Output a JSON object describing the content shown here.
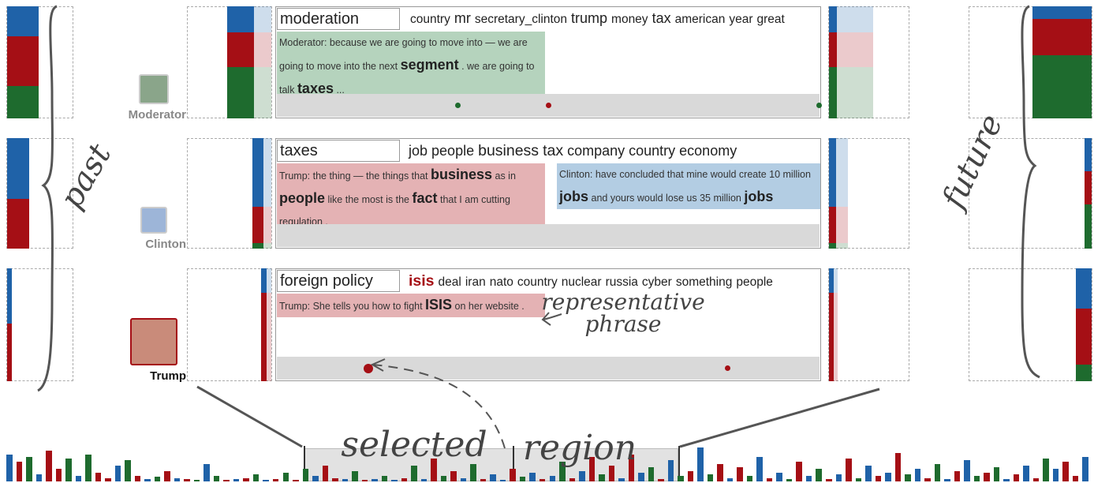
{
  "palette": [
    "#1f62a8",
    "#a50f15",
    "#1e6b2e"
  ],
  "rows": [
    {
      "speaker": "Moderator",
      "topic": "moderation",
      "keywords": [
        {
          "text": "country",
          "w": 1
        },
        {
          "text": "mr",
          "w": 2
        },
        {
          "text": "secretary_clinton",
          "w": 1
        },
        {
          "text": "trump",
          "w": 2
        },
        {
          "text": "money",
          "w": 1
        },
        {
          "text": "tax",
          "w": 2
        },
        {
          "text": "american",
          "w": 1
        },
        {
          "text": "year",
          "w": 1
        },
        {
          "text": "great",
          "w": 1
        }
      ],
      "phrases": [
        {
          "color": "#b5d3bd",
          "parts": [
            {
              "text": "Moderator: because we are going to move into — we are going to move into the next "
            },
            {
              "text": "segment",
              "em": true
            },
            {
              "text": " . we are going to talk "
            },
            {
              "text": "taxes",
              "em": true
            },
            {
              "text": " ..."
            }
          ]
        }
      ],
      "dots": [
        {
          "x": 0.334,
          "speaker": 2,
          "r": 3.5
        },
        {
          "x": 0.5,
          "speaker": 1,
          "r": 3.5
        },
        {
          "x": 0.999,
          "speaker": 2,
          "r": 3.5
        }
      ],
      "past_far": {
        "values": [
          0.27,
          0.44,
          0.29
        ],
        "width": 0.47
      },
      "past_near": {
        "values": [
          0.23,
          0.31,
          0.46
        ],
        "width": 0.52,
        "split": 0.6
      },
      "future_near": {
        "values": [
          0.23,
          0.31,
          0.46
        ],
        "width": 0.54,
        "split": 0.18
      },
      "future_far": {
        "values": [
          0.11,
          0.33,
          0.56
        ],
        "width": 0.48
      }
    },
    {
      "speaker": "Clinton",
      "topic": "taxes",
      "keywords": [
        {
          "text": "job",
          "w": 2
        },
        {
          "text": "people",
          "w": 2
        },
        {
          "text": "business",
          "w": 3
        },
        {
          "text": "tax",
          "w": 3
        },
        {
          "text": "company",
          "w": 2
        },
        {
          "text": "country",
          "w": 2
        },
        {
          "text": "economy",
          "w": 2
        }
      ],
      "phrases": [
        {
          "color": "#e4b2b4",
          "parts": [
            {
              "text": "Trump: the thing — the things that "
            },
            {
              "text": "business",
              "em": true
            },
            {
              "text": " as in "
            },
            {
              "text": "people",
              "em": true
            },
            {
              "text": " like the most is the "
            },
            {
              "text": "fact",
              "em": true
            },
            {
              "text": " that I am cutting regulation ."
            }
          ]
        },
        {
          "color": "#b3cde3",
          "parts": [
            {
              "text": "Clinton: have concluded that mine would create 10 million "
            },
            {
              "text": "jobs",
              "em": true
            },
            {
              "text": " and yours would lose us 35 million "
            },
            {
              "text": "jobs",
              "em": true
            }
          ]
        }
      ],
      "dots": [],
      "past_far": {
        "values": [
          0.55,
          0.45,
          0
        ],
        "width": 0.33
      },
      "past_near": {
        "values": [
          0.62,
          0.33,
          0.05
        ],
        "width": 0.22,
        "split": 0.6
      },
      "future_near": {
        "values": [
          0.62,
          0.33,
          0.05
        ],
        "width": 0.23,
        "split": 0.4
      },
      "future_far": {
        "values": [
          0.3,
          0.3,
          0.4
        ],
        "width": 0.06
      }
    },
    {
      "speaker": "Trump",
      "topic": "foreign policy",
      "keywords": [
        {
          "text": "isis",
          "w": 3,
          "speaker": 1
        },
        {
          "text": "deal",
          "w": 1
        },
        {
          "text": "iran",
          "w": 1
        },
        {
          "text": "nato",
          "w": 1
        },
        {
          "text": "country",
          "w": 1
        },
        {
          "text": "nuclear",
          "w": 1
        },
        {
          "text": "russia",
          "w": 1
        },
        {
          "text": "cyber",
          "w": 1
        },
        {
          "text": "something",
          "w": 1
        },
        {
          "text": "people",
          "w": 1
        }
      ],
      "phrases": [
        {
          "color": "#e4b2b4",
          "parts": [
            {
              "text": "Trump: She tells you how to fight "
            },
            {
              "text": "ISIS",
              "em": true
            },
            {
              "text": " on her website ."
            }
          ]
        }
      ],
      "dots": [
        {
          "x": 0.168,
          "speaker": 1,
          "r": 6
        },
        {
          "x": 0.831,
          "speaker": 1,
          "r": 3.5
        }
      ],
      "past_far": {
        "values": [
          0.49,
          0.51,
          0
        ],
        "width": 0.07
      },
      "past_near": {
        "values": [
          0.22,
          0.78,
          0
        ],
        "width": 0.12,
        "split": 0.5
      },
      "future_near": {
        "values": [
          0.22,
          0.78,
          0
        ],
        "width": 0.11,
        "split": 0.5
      },
      "future_far": {
        "values": [
          0.36,
          0.49,
          0.15
        ],
        "width": 0.13
      }
    }
  ],
  "annotations": {
    "past": "past",
    "future": "future",
    "representative_phrase": [
      "representative",
      "phrase"
    ],
    "selected_region": [
      "selected",
      "region"
    ]
  },
  "timeline": {
    "ylim": [
      0,
      40
    ],
    "values": [
      30,
      22,
      28,
      8,
      35,
      14,
      26,
      6,
      30,
      10,
      4,
      18,
      24,
      6,
      3,
      5,
      12,
      4,
      3,
      2,
      20,
      6,
      2,
      3,
      4,
      8,
      2,
      3,
      10,
      2,
      14,
      6,
      18,
      4,
      3,
      12,
      2,
      3,
      6,
      2,
      4,
      18,
      3,
      26,
      6,
      12,
      4,
      20,
      3,
      8,
      2,
      14,
      5,
      10,
      3,
      6,
      22,
      4,
      12,
      28,
      8,
      18,
      4,
      30,
      10,
      16,
      3,
      24,
      6,
      12,
      38,
      8,
      20,
      4,
      16,
      6,
      28,
      4,
      10,
      3,
      22,
      6,
      14,
      3,
      8,
      26,
      4,
      18,
      6,
      10,
      32,
      8,
      14,
      4,
      20,
      3,
      12,
      24,
      6,
      10,
      16,
      3,
      8,
      18,
      4,
      26,
      14,
      22,
      6,
      28
    ],
    "speaker": [
      0,
      1,
      2,
      0,
      1,
      1,
      2,
      0,
      2,
      1,
      1,
      0,
      2,
      1,
      0,
      2,
      1,
      0,
      1,
      2,
      0,
      2,
      1,
      0,
      1,
      2,
      0,
      1,
      2,
      1,
      2,
      0,
      1,
      1,
      0,
      2,
      1,
      0,
      2,
      0,
      1,
      2,
      0,
      1,
      2,
      1,
      0,
      2,
      1,
      0,
      0,
      1,
      2,
      0,
      1,
      0,
      2,
      1,
      0,
      1,
      2,
      1,
      0,
      1,
      0,
      2,
      1,
      0,
      2,
      1,
      0,
      2,
      1,
      0,
      1,
      2,
      0,
      1,
      0,
      2,
      1,
      0,
      2,
      1,
      0,
      1,
      2,
      0,
      1,
      0,
      1,
      2,
      0,
      1,
      2,
      0,
      1,
      0,
      2,
      1,
      2,
      0,
      1,
      0,
      1,
      2,
      0,
      1,
      1,
      0
    ]
  }
}
